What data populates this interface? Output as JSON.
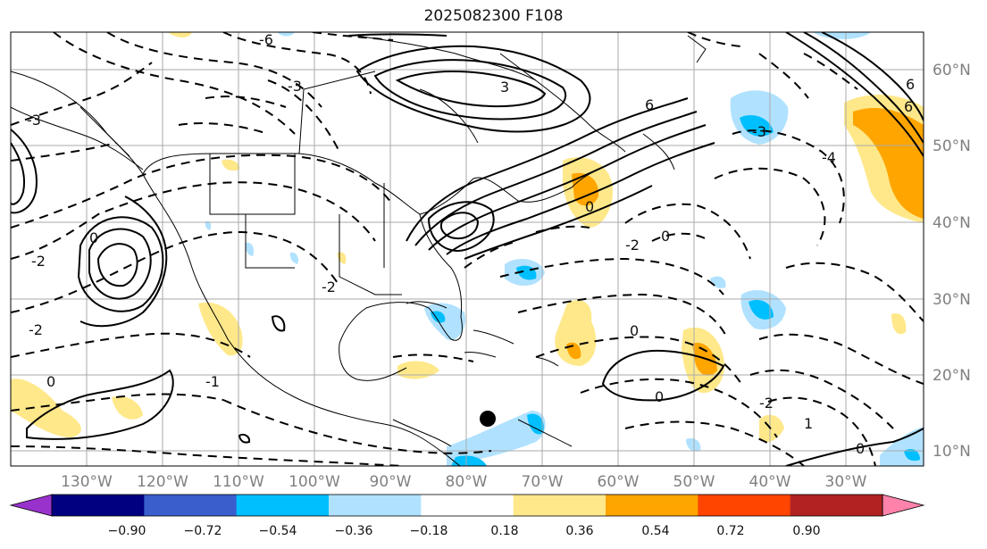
{
  "title": "2025082300 F108",
  "map": {
    "lon_ticks": [
      "130°W",
      "120°W",
      "110°W",
      "100°W",
      "90°W",
      "80°W",
      "70°W",
      "60°W",
      "50°W",
      "40°W",
      "30°W"
    ],
    "lat_ticks": [
      "60°N",
      "50°N",
      "40°N",
      "30°N",
      "20°N",
      "10°N"
    ],
    "contour_labels": [
      "-6",
      "-3",
      "3",
      "6",
      "-3",
      "6",
      "0",
      "-2",
      "0",
      "0",
      "-2",
      "0",
      "-2",
      "0",
      "-2",
      "-1",
      "0",
      "-2",
      "1",
      "0",
      "6",
      "-4",
      "-3"
    ],
    "marker": "storm-position",
    "colors": {
      "positive_contour": "#000000",
      "grid": "#aaaaaa"
    }
  },
  "colorbar": {
    "levels": [
      "−0.90",
      "−0.72",
      "−0.54",
      "−0.36",
      "−0.18",
      "0.18",
      "0.36",
      "0.54",
      "0.72",
      "0.90"
    ],
    "colors": [
      "#9932cc",
      "#000080",
      "#3a5fcd",
      "#00bfff",
      "#b0e2ff",
      "#ffffff",
      "#ffe88a",
      "#ffa500",
      "#ff4500",
      "#b22222",
      "#ff82ab"
    ]
  }
}
